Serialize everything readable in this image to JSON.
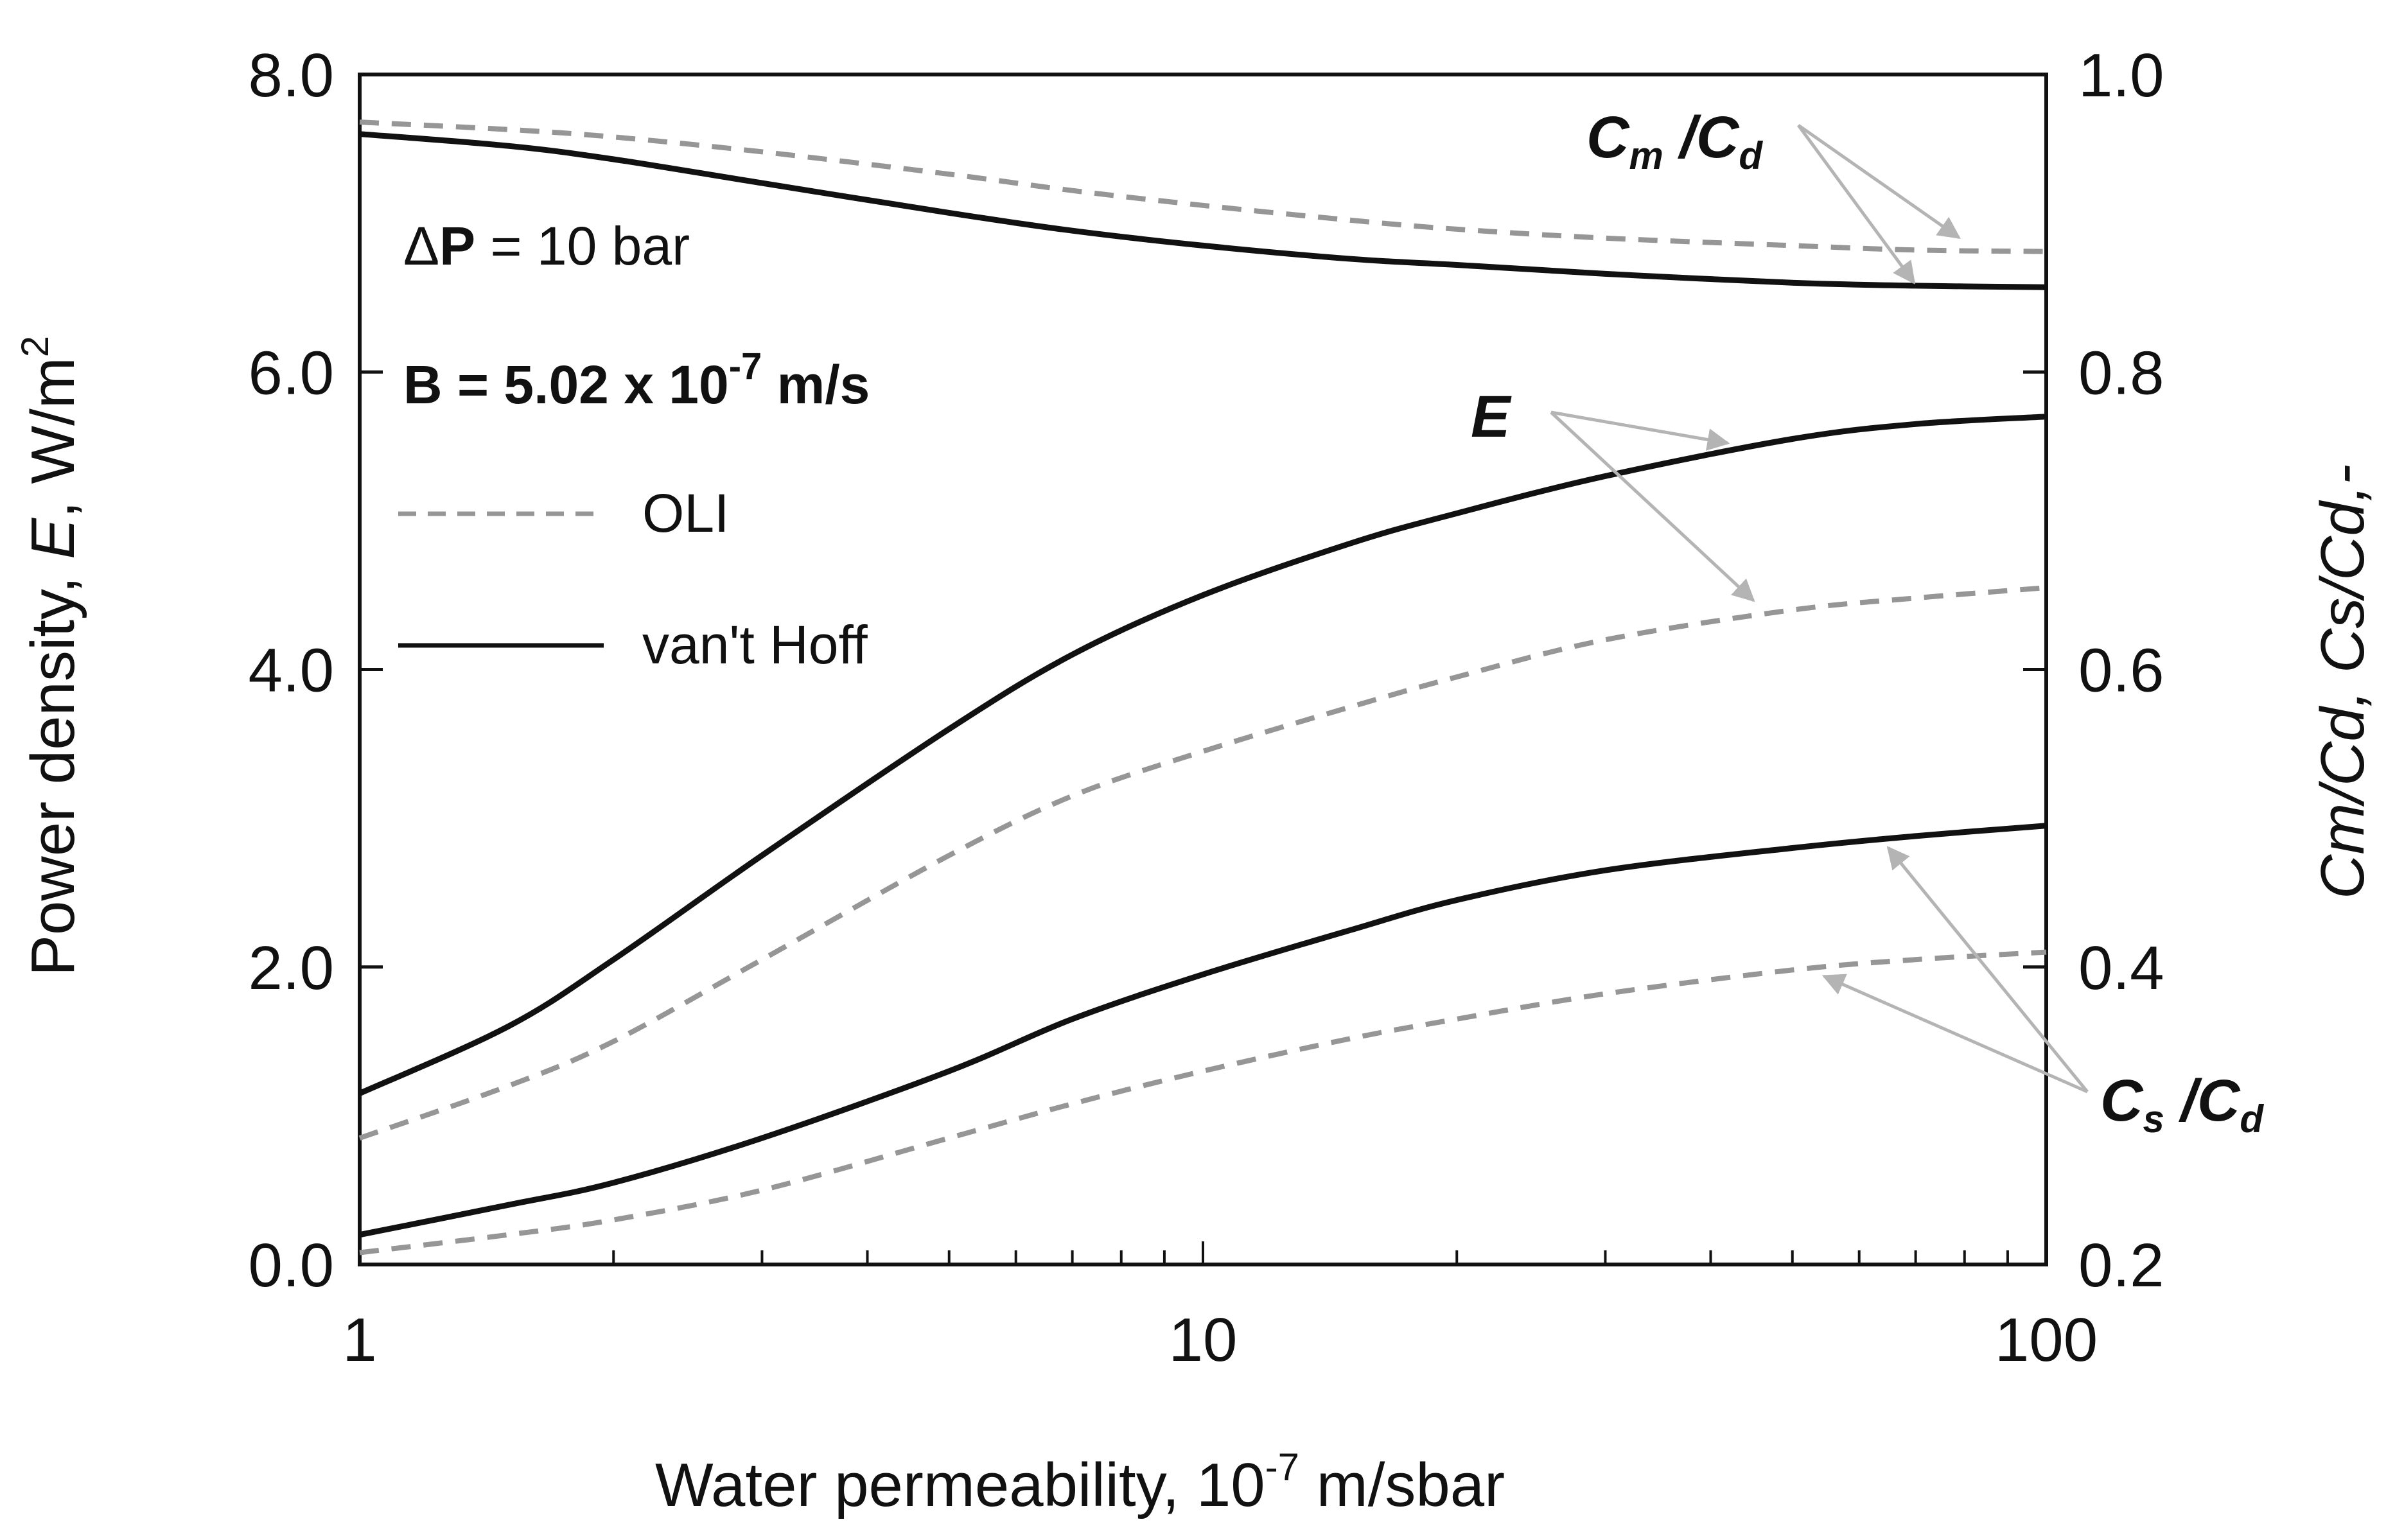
{
  "chart_data": {
    "type": "line",
    "x_scale": "log",
    "xlabel_main": "Water permeability, 10",
    "xlabel_exp": "-7",
    "xlabel_unit": " m/sbar",
    "xlim": [
      1,
      100
    ],
    "x_ticks": [
      "1",
      "10",
      "100"
    ],
    "ylabel_left_a": "Power density, ",
    "ylabel_left_b": "E",
    "ylabel_left_c": ", W/m",
    "ylabel_left_sup": "2",
    "ylim_left": [
      0,
      8
    ],
    "y_ticks_left": [
      "0.0",
      "2.0",
      "4.0",
      "6.0",
      "8.0"
    ],
    "ylabel_right": "Cm/Cd, Cs/Cd,-",
    "ylim_right": [
      0.2,
      1.0
    ],
    "y_ticks_right": [
      "0.2",
      "0.4",
      "0.6",
      "0.8",
      "1.0"
    ],
    "x": [
      1,
      1.5,
      2,
      3,
      5,
      7,
      10,
      15,
      20,
      30,
      50,
      70,
      100
    ],
    "series": [
      {
        "name": "E (van't Hoff)",
        "style": "solid",
        "axis": "left",
        "values": [
          1.15,
          1.6,
          2.05,
          2.75,
          3.6,
          4.1,
          4.5,
          4.85,
          5.05,
          5.3,
          5.55,
          5.65,
          5.7
        ]
      },
      {
        "name": "E (OLI)",
        "style": "dashed",
        "axis": "left",
        "values": [
          0.85,
          1.2,
          1.5,
          2.05,
          2.75,
          3.15,
          3.45,
          3.75,
          3.95,
          4.2,
          4.4,
          4.48,
          4.55
        ]
      },
      {
        "name": "Cs/Cd (van't Hoff)",
        "style": "solid",
        "axis": "left",
        "values": [
          0.2,
          0.4,
          0.55,
          0.85,
          1.3,
          1.65,
          1.95,
          2.25,
          2.45,
          2.65,
          2.8,
          2.88,
          2.95
        ]
      },
      {
        "name": "Cs/Cd (OLI)",
        "style": "dashed",
        "axis": "left",
        "values": [
          0.08,
          0.2,
          0.3,
          0.5,
          0.85,
          1.08,
          1.3,
          1.52,
          1.65,
          1.82,
          1.98,
          2.05,
          2.1
        ]
      },
      {
        "name": "Cm/Cd (van't Hoff)",
        "style": "solid",
        "axis": "left",
        "values": [
          7.6,
          7.52,
          7.43,
          7.27,
          7.07,
          6.95,
          6.85,
          6.76,
          6.72,
          6.66,
          6.6,
          6.58,
          6.57
        ]
      },
      {
        "name": "Cm/Cd (OLI)",
        "style": "dashed",
        "axis": "left",
        "values": [
          7.68,
          7.63,
          7.58,
          7.48,
          7.33,
          7.22,
          7.12,
          7.02,
          6.96,
          6.9,
          6.85,
          6.82,
          6.81
        ]
      }
    ],
    "legend": [
      {
        "label": "OLI",
        "style": "dashed"
      },
      {
        "label": "van't Hoff",
        "style": "solid"
      }
    ],
    "annotations": {
      "delta_p": {
        "sym": "Δ",
        "bold": "P",
        "rest": " = 10 bar"
      },
      "b_value": {
        "main": "B = 5.02 x 10",
        "exp": "-7",
        "unit": " m/s"
      },
      "label_E": "E",
      "label_cm": {
        "c": "C",
        "sub": "m",
        "slash": " /C",
        "sub2": "d"
      },
      "label_cs": {
        "c": "C",
        "sub": "s",
        "slash": " /C",
        "sub2": "d"
      }
    },
    "colors": {
      "solid": "#111111",
      "dashed": "#969696",
      "arrow": "#b4b4b4",
      "b_text": "#8c8c8c"
    }
  }
}
